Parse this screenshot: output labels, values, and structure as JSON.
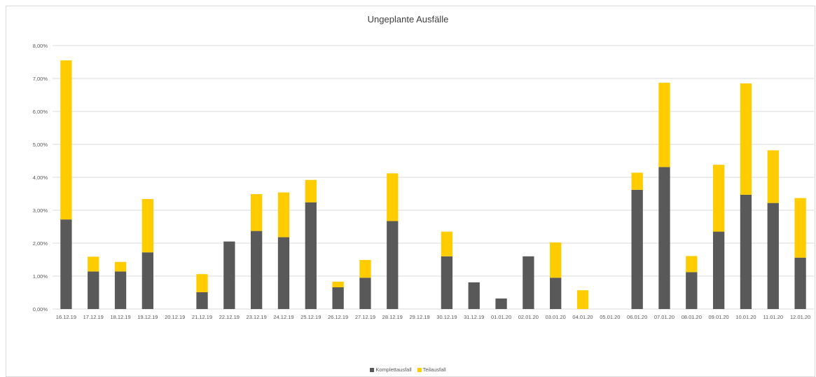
{
  "chart_data": {
    "type": "bar",
    "stacked": true,
    "title": "Ungeplante Ausfälle",
    "xlabel": "",
    "ylabel": "",
    "ylim": [
      0,
      0.08
    ],
    "yticks": [
      "0,00%",
      "1,00%",
      "2,00%",
      "3,00%",
      "4,00%",
      "5,00%",
      "6,00%",
      "7,00%",
      "8,00%"
    ],
    "grid": true,
    "legend_position": "bottom",
    "categories": [
      "16.12.19",
      "17.12.19",
      "18.12.19",
      "19.12.19",
      "20.12.19",
      "21.12.19",
      "22.12.19",
      "23.12.19",
      "24.12.19",
      "25.12.19",
      "26.12.19",
      "27.12.19",
      "28.12.19",
      "29.12.19",
      "30.12.19",
      "31.12.19",
      "01.01.20",
      "02.01.20",
      "03.01.20",
      "04.01.20",
      "05.01.20",
      "06.01.20",
      "07.01.20",
      "08.01.20",
      "09.01.20",
      "10.01.20",
      "11.01.20",
      "12.01.20"
    ],
    "series": [
      {
        "name": "Komplettausfall",
        "color": "#595959",
        "values": [
          0.0272,
          0.0114,
          0.0114,
          0.0172,
          0,
          0.0051,
          0.0205,
          0.0237,
          0.0218,
          0.0324,
          0.0066,
          0.0095,
          0.0267,
          0,
          0.016,
          0.0081,
          0.0032,
          0.016,
          0.0095,
          0,
          0,
          0.0362,
          0.0431,
          0.0112,
          0.0235,
          0.0347,
          0.0322,
          0.0156
        ]
      },
      {
        "name": "Teilausfall",
        "color": "#ffcc00",
        "values": [
          0.0483,
          0.0045,
          0.0029,
          0.0162,
          0,
          0.0055,
          0,
          0.0112,
          0.0136,
          0.0068,
          0.0017,
          0.0054,
          0.0145,
          0,
          0.0075,
          0,
          0,
          0,
          0.0107,
          0.0057,
          0,
          0.0052,
          0.0256,
          0.0049,
          0.0203,
          0.0338,
          0.016,
          0.0181
        ]
      }
    ]
  }
}
